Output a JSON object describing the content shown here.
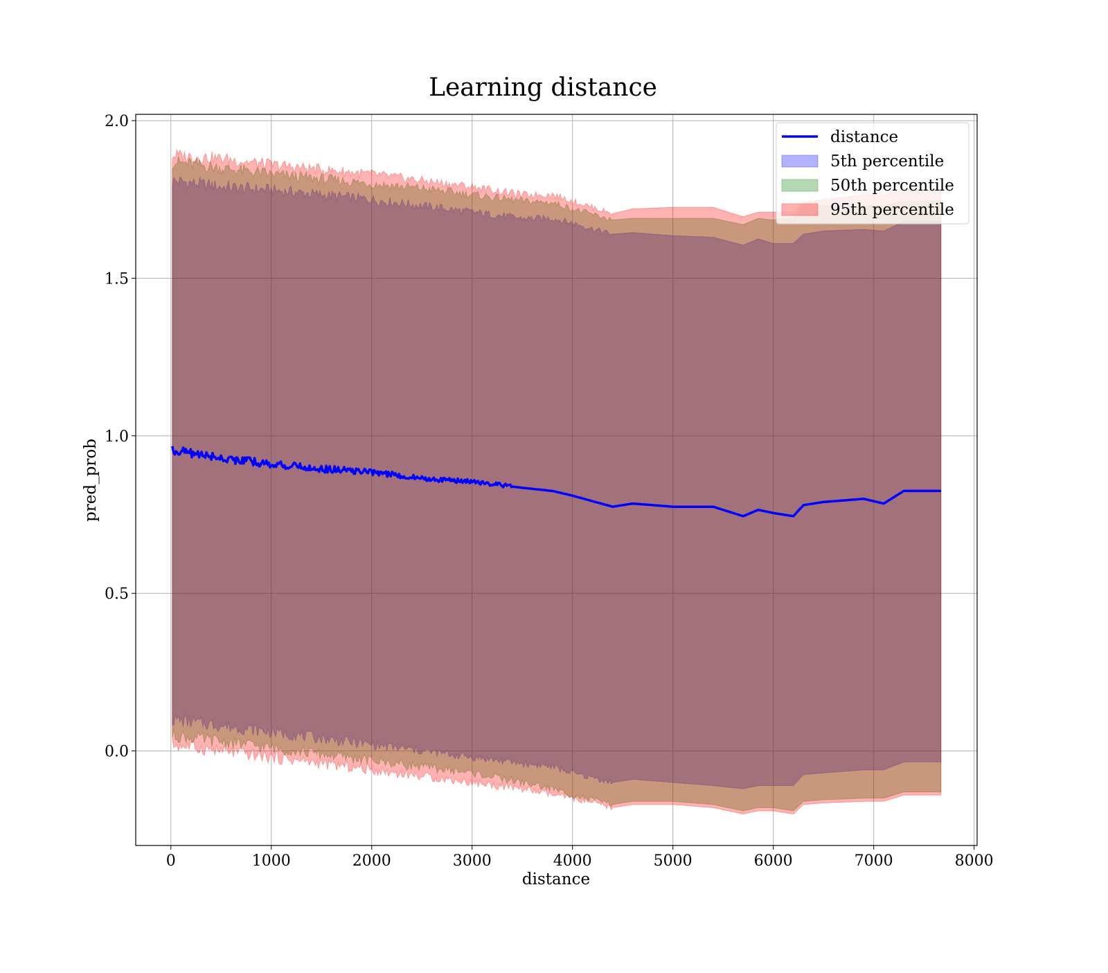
{
  "chart_data": {
    "type": "line",
    "title": "Learning distance",
    "xlabel": "distance",
    "ylabel": "pred_prob",
    "xlim": [
      -350,
      8030
    ],
    "ylim": [
      -0.3,
      2.02
    ],
    "xticks": [
      0,
      1000,
      2000,
      3000,
      4000,
      5000,
      6000,
      7000,
      8000
    ],
    "xtick_labels": [
      "0",
      "1000",
      "2000",
      "3000",
      "4000",
      "5000",
      "6000",
      "7000",
      "8000"
    ],
    "yticks": [
      0.0,
      0.5,
      1.0,
      1.5,
      2.0
    ],
    "ytick_labels": [
      "0.0",
      "0.5",
      "1.0",
      "1.5",
      "2.0"
    ],
    "grid": true,
    "legend_placement": "top-right",
    "x": [
      15,
      500,
      1000,
      1500,
      2000,
      2500,
      3000,
      3500,
      3800,
      4000,
      4400,
      4600,
      5000,
      5400,
      5700,
      5850,
      6000,
      6200,
      6300,
      6500,
      6900,
      7100,
      7300,
      7670
    ],
    "series": [
      {
        "name": "distance",
        "kind": "line",
        "color": "#0000ff",
        "values": [
          0.955,
          0.93,
          0.91,
          0.895,
          0.885,
          0.865,
          0.855,
          0.835,
          0.825,
          0.81,
          0.775,
          0.785,
          0.775,
          0.775,
          0.745,
          0.765,
          0.755,
          0.745,
          0.78,
          0.79,
          0.8,
          0.785,
          0.825,
          0.825
        ]
      },
      {
        "name": "5th percentile",
        "kind": "band",
        "color": "#0000ff",
        "upper": [
          1.81,
          1.79,
          1.78,
          1.765,
          1.75,
          1.73,
          1.71,
          1.69,
          1.69,
          1.675,
          1.64,
          1.645,
          1.635,
          1.63,
          1.605,
          1.625,
          1.61,
          1.61,
          1.64,
          1.65,
          1.655,
          1.65,
          1.68,
          1.68
        ],
        "lower": [
          0.1,
          0.08,
          0.06,
          0.04,
          0.02,
          0.0,
          -0.02,
          -0.04,
          -0.05,
          -0.07,
          -0.1,
          -0.09,
          -0.1,
          -0.11,
          -0.12,
          -0.11,
          -0.11,
          -0.11,
          -0.075,
          -0.07,
          -0.06,
          -0.06,
          -0.035,
          -0.035
        ]
      },
      {
        "name": "50th percentile",
        "kind": "band",
        "color": "#008000",
        "upper": [
          1.87,
          1.85,
          1.83,
          1.815,
          1.8,
          1.785,
          1.765,
          1.745,
          1.74,
          1.72,
          1.685,
          1.69,
          1.69,
          1.69,
          1.67,
          1.69,
          1.685,
          1.69,
          1.73,
          1.73,
          1.73,
          1.73,
          1.745,
          1.745
        ],
        "lower": [
          0.05,
          0.03,
          0.01,
          -0.01,
          -0.03,
          -0.05,
          -0.07,
          -0.1,
          -0.12,
          -0.14,
          -0.17,
          -0.16,
          -0.16,
          -0.17,
          -0.19,
          -0.18,
          -0.18,
          -0.19,
          -0.16,
          -0.155,
          -0.15,
          -0.15,
          -0.13,
          -0.13
        ]
      },
      {
        "name": "95th percentile",
        "kind": "band",
        "color": "#ff0000",
        "upper": [
          1.89,
          1.88,
          1.86,
          1.845,
          1.83,
          1.81,
          1.79,
          1.765,
          1.765,
          1.745,
          1.705,
          1.72,
          1.725,
          1.725,
          1.695,
          1.71,
          1.71,
          1.71,
          1.74,
          1.75,
          1.765,
          1.765,
          1.78,
          1.78
        ],
        "lower": [
          0.02,
          0.0,
          -0.02,
          -0.04,
          -0.06,
          -0.08,
          -0.1,
          -0.12,
          -0.14,
          -0.15,
          -0.18,
          -0.17,
          -0.17,
          -0.18,
          -0.2,
          -0.19,
          -0.19,
          -0.2,
          -0.17,
          -0.165,
          -0.16,
          -0.16,
          -0.14,
          -0.14
        ]
      }
    ]
  }
}
